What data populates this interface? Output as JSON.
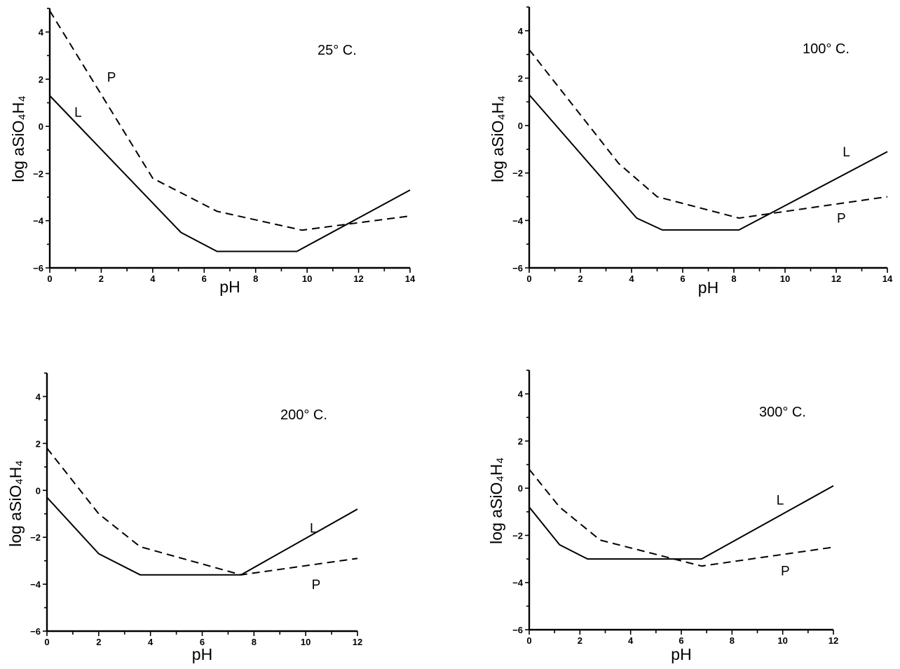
{
  "chart_data": [
    {
      "type": "line",
      "title": "25° C.",
      "xlabel": "pH",
      "ylabel": "log aSiO₄H₄",
      "xlim": [
        0,
        14
      ],
      "ylim": [
        -6,
        5
      ],
      "xticks": [
        0,
        2,
        4,
        6,
        8,
        10,
        12,
        14
      ],
      "yticks": [
        -6,
        -4,
        -2,
        0,
        2,
        4
      ],
      "grid": false,
      "series": [
        {
          "name": "L",
          "dash": "solid",
          "x": [
            0,
            5.1,
            6.5,
            9.6,
            14
          ],
          "y": [
            1.3,
            -4.5,
            -5.3,
            -5.3,
            -2.7
          ]
        },
        {
          "name": "P",
          "dash": "dashed",
          "x": [
            0,
            4.0,
            6.5,
            9.8,
            14
          ],
          "y": [
            4.9,
            -2.2,
            -3.6,
            -4.4,
            -3.8
          ]
        }
      ],
      "annotations": [
        {
          "text": "P",
          "x": 2.4,
          "y": 1.9
        },
        {
          "text": "L",
          "x": 1.1,
          "y": 0.4
        }
      ]
    },
    {
      "type": "line",
      "title": "100° C.",
      "xlabel": "pH",
      "ylabel": "log aSiO₄H₄",
      "xlim": [
        0,
        14
      ],
      "ylim": [
        -6,
        5
      ],
      "xticks": [
        0,
        2,
        4,
        6,
        8,
        10,
        12,
        14
      ],
      "yticks": [
        -6,
        -4,
        -2,
        0,
        2,
        4
      ],
      "grid": false,
      "series": [
        {
          "name": "L",
          "dash": "solid",
          "x": [
            0,
            4.2,
            5.2,
            8.2,
            14
          ],
          "y": [
            1.3,
            -3.9,
            -4.4,
            -4.4,
            -1.1
          ]
        },
        {
          "name": "P",
          "dash": "dashed",
          "x": [
            0,
            3.5,
            5.0,
            8.2,
            14
          ],
          "y": [
            3.2,
            -1.6,
            -3.0,
            -3.9,
            -3.0
          ]
        }
      ],
      "annotations": [
        {
          "text": "L",
          "x": 12.4,
          "y": -1.3
        },
        {
          "text": "P",
          "x": 12.2,
          "y": -4.1
        }
      ]
    },
    {
      "type": "line",
      "title": "200° C.",
      "xlabel": "pH",
      "ylabel": "log aSiO₄H₄",
      "xlim": [
        0,
        12
      ],
      "ylim": [
        -6,
        5
      ],
      "xticks": [
        0,
        2,
        4,
        6,
        8,
        10,
        12
      ],
      "yticks": [
        -6,
        -4,
        -2,
        0,
        2,
        4
      ],
      "grid": false,
      "series": [
        {
          "name": "L",
          "dash": "solid",
          "x": [
            0,
            2.0,
            3.6,
            7.5,
            12
          ],
          "y": [
            -0.3,
            -2.7,
            -3.6,
            -3.6,
            -0.8
          ]
        },
        {
          "name": "P",
          "dash": "dashed",
          "x": [
            0,
            2.0,
            3.6,
            7.5,
            12
          ],
          "y": [
            1.8,
            -1.0,
            -2.4,
            -3.6,
            -2.9
          ]
        }
      ],
      "annotations": [
        {
          "text": "L",
          "x": 10.3,
          "y": -1.8
        },
        {
          "text": "P",
          "x": 10.4,
          "y": -4.2
        }
      ]
    },
    {
      "type": "line",
      "title": "300° C.",
      "xlabel": "pH",
      "ylabel": "log aSiO₄H₄",
      "xlim": [
        0,
        12
      ],
      "ylim": [
        -6,
        5
      ],
      "xticks": [
        0,
        2,
        4,
        6,
        8,
        10,
        12
      ],
      "yticks": [
        -6,
        -4,
        -2,
        0,
        2,
        4
      ],
      "grid": false,
      "series": [
        {
          "name": "L",
          "dash": "solid",
          "x": [
            0,
            1.2,
            2.3,
            6.8,
            12
          ],
          "y": [
            -0.8,
            -2.4,
            -3.0,
            -3.0,
            0.1
          ]
        },
        {
          "name": "P",
          "dash": "dashed",
          "x": [
            0,
            1.2,
            2.8,
            6.8,
            12
          ],
          "y": [
            0.8,
            -0.8,
            -2.2,
            -3.3,
            -2.5
          ]
        }
      ],
      "annotations": [
        {
          "text": "L",
          "x": 9.9,
          "y": -0.7
        },
        {
          "text": "P",
          "x": 10.1,
          "y": -3.7
        }
      ]
    }
  ]
}
